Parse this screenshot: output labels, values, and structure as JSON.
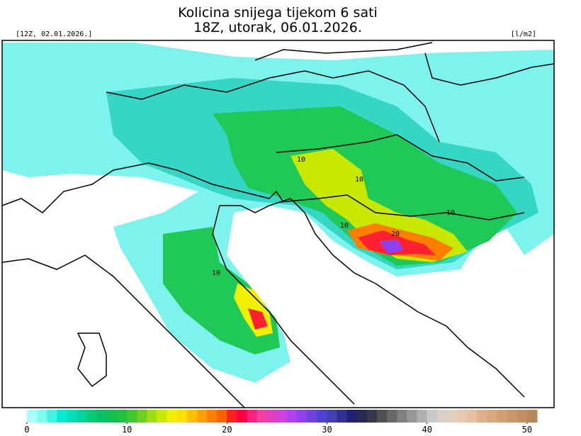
{
  "header": {
    "title_line1": "Kolicina snijega tijekom 6 sati",
    "title_line2": "18Z, utorak, 06.01.2026.",
    "init": "[12Z, 02.01.2026.]",
    "unit": "[l/m2]"
  },
  "map": {
    "contour_labels": [
      "10",
      "10",
      "10",
      "10",
      "20",
      "10"
    ]
  },
  "colorbar": {
    "range": [
      0,
      51
    ],
    "ticks": [
      0,
      10,
      20,
      30,
      40,
      50
    ],
    "colors": [
      "#aafff8",
      "#7cfff0",
      "#40f4e4",
      "#00ecd4",
      "#00e0b8",
      "#00d498",
      "#00cc78",
      "#00c464",
      "#10c050",
      "#20c040",
      "#40c830",
      "#70d020",
      "#a0dc10",
      "#c8e800",
      "#f0f000",
      "#ffe000",
      "#ffc000",
      "#ffa000",
      "#ff8000",
      "#ff6000",
      "#ff2020",
      "#ff0040",
      "#ff2080",
      "#f040a0",
      "#e040c0",
      "#d040e0",
      "#b040f0",
      "#9040f0",
      "#7040e0",
      "#5040d0",
      "#4040b0",
      "#303090",
      "#202070",
      "#282850",
      "#383848",
      "#505050",
      "#686868",
      "#808080",
      "#989898",
      "#b0b0b0",
      "#c8c8c8",
      "#d8d0c8",
      "#e0d0c0",
      "#e8c8b0",
      "#e8c0a0",
      "#e0b090",
      "#d8a880",
      "#d0a070",
      "#c89868",
      "#c09060",
      "#b88858"
    ]
  }
}
